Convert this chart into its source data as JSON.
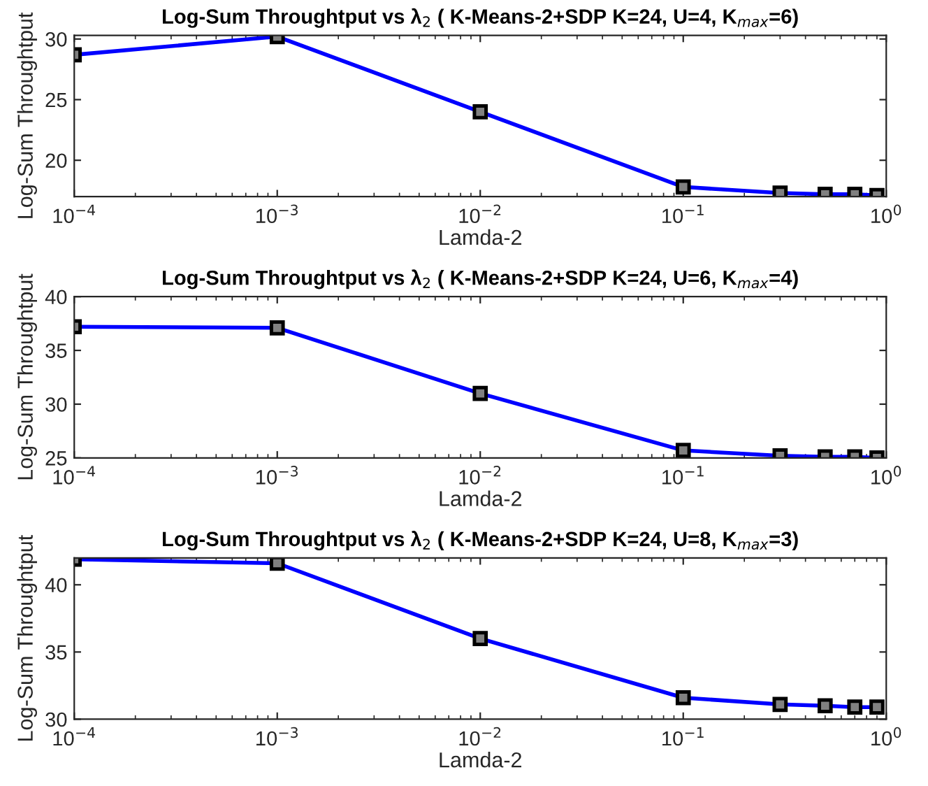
{
  "chart_data": [
    {
      "type": "line",
      "title": "Log-Sum Throughtput vs λ$_{2}$ ( K-Means-2+SDP K=24, U=4, K$_{max}$=6)",
      "xlabel": "Lamda-2",
      "ylabel": "Log-Sum Throughtput",
      "log": "x",
      "x": [
        0.0001,
        0.001,
        0.01,
        0.1,
        0.3,
        0.5,
        0.7,
        0.9
      ],
      "xlim": [
        0.0001,
        1
      ],
      "xticks": [
        {
          "value": 0.0001,
          "label": "10$^{−4}$"
        },
        {
          "value": 0.001,
          "label": "10$^{−3}$"
        },
        {
          "value": 0.01,
          "label": "10$^{−2}$"
        },
        {
          "value": 0.1,
          "label": "10$^{−1}$"
        },
        {
          "value": 1,
          "label": "10$^{0}$"
        }
      ],
      "ylim": [
        17,
        30.3
      ],
      "yticks": [
        20,
        25,
        30
      ],
      "marker": "square",
      "line_style": "solid",
      "grid": false,
      "legend": false,
      "series": [
        {
          "color": "#0000ff",
          "values": [
            28.7,
            30.2,
            24.0,
            17.8,
            17.3,
            17.2,
            17.2,
            17.1
          ]
        }
      ]
    },
    {
      "type": "line",
      "title": "Log-Sum Throughtput vs λ$_{2}$ ( K-Means-2+SDP K=24, U=6, K$_{max}$=4)",
      "xlabel": "Lamda-2",
      "ylabel": "Log-Sum Throughtput",
      "log": "x",
      "x": [
        0.0001,
        0.001,
        0.01,
        0.1,
        0.3,
        0.5,
        0.7,
        0.9
      ],
      "xlim": [
        0.0001,
        1
      ],
      "xticks": [
        {
          "value": 0.0001,
          "label": "10$^{−4}$"
        },
        {
          "value": 0.001,
          "label": "10$^{−3}$"
        },
        {
          "value": 0.01,
          "label": "10$^{−2}$"
        },
        {
          "value": 0.1,
          "label": "10$^{−1}$"
        },
        {
          "value": 1,
          "label": "10$^{0}$"
        }
      ],
      "ylim": [
        25,
        40
      ],
      "yticks": [
        25,
        30,
        35,
        40
      ],
      "marker": "square",
      "line_style": "solid",
      "grid": false,
      "legend": false,
      "series": [
        {
          "color": "#0000ff",
          "values": [
            37.2,
            37.1,
            31.0,
            25.7,
            25.2,
            25.1,
            25.1,
            25.0
          ]
        }
      ]
    },
    {
      "type": "line",
      "title": "Log-Sum Throughtput vs λ$_{2}$ ( K-Means-2+SDP K=24, U=8, K$_{max}$=3)",
      "xlabel": "Lamda-2",
      "ylabel": "Log-Sum Throughtput",
      "log": "x",
      "x": [
        0.0001,
        0.001,
        0.01,
        0.1,
        0.3,
        0.5,
        0.7,
        0.9
      ],
      "xlim": [
        0.0001,
        1
      ],
      "xticks": [
        {
          "value": 0.0001,
          "label": "10$^{−4}$"
        },
        {
          "value": 0.001,
          "label": "10$^{−3}$"
        },
        {
          "value": 0.01,
          "label": "10$^{−2}$"
        },
        {
          "value": 0.1,
          "label": "10$^{−1}$"
        },
        {
          "value": 1,
          "label": "10$^{0}$"
        }
      ],
      "ylim": [
        30,
        42
      ],
      "yticks": [
        30,
        35,
        40
      ],
      "marker": "square",
      "line_style": "solid",
      "grid": false,
      "legend": false,
      "series": [
        {
          "color": "#0000ff",
          "values": [
            41.9,
            41.6,
            36.0,
            31.6,
            31.1,
            31.0,
            30.9,
            30.9
          ]
        }
      ]
    }
  ]
}
